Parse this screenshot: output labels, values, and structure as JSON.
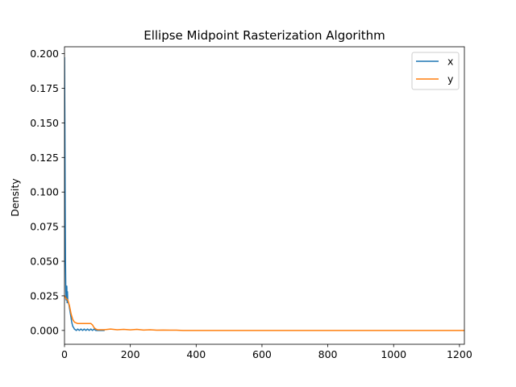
{
  "chart_data": {
    "type": "line",
    "title": "Ellipse Midpoint Rasterization Algorithm",
    "xlabel": "",
    "ylabel": "Density",
    "xlim": [
      0,
      1215
    ],
    "ylim": [
      -0.01,
      0.205
    ],
    "xticks": [
      0,
      200,
      400,
      600,
      800,
      1000,
      1200
    ],
    "yticks": [
      0.0,
      0.025,
      0.05,
      0.075,
      0.1,
      0.125,
      0.15,
      0.175,
      0.2
    ],
    "ytick_labels": [
      "0.000",
      "0.025",
      "0.050",
      "0.075",
      "0.100",
      "0.125",
      "0.150",
      "0.175",
      "0.200"
    ],
    "legend_position": "top-right",
    "grid": false,
    "series": [
      {
        "name": "x",
        "color": "#1f77b4",
        "x": [
          0,
          1,
          2,
          3,
          4,
          5,
          6,
          7,
          8,
          9,
          10,
          12,
          14,
          16,
          18,
          20,
          22,
          25,
          28,
          30,
          33,
          36,
          40,
          45,
          50,
          55,
          60,
          65,
          70,
          75,
          80,
          85,
          90,
          95,
          100,
          110,
          120
        ],
        "y": [
          0.197,
          0.15,
          0.09,
          0.05,
          0.03,
          0.022,
          0.025,
          0.032,
          0.02,
          0.028,
          0.021,
          0.02,
          0.018,
          0.015,
          0.012,
          0.009,
          0.006,
          0.003,
          0.002,
          0.001,
          0.0005,
          0.0,
          0.001,
          0.0,
          0.001,
          0.0,
          0.001,
          0.0,
          0.001,
          0.0,
          0.001,
          0.0,
          0.001,
          0.0,
          0.0,
          0.0,
          0.0
        ]
      },
      {
        "name": "y",
        "color": "#ff7f0e",
        "x": [
          0,
          5,
          10,
          15,
          20,
          25,
          30,
          40,
          50,
          60,
          70,
          80,
          85,
          90,
          95,
          100,
          120,
          140,
          160,
          180,
          200,
          220,
          240,
          260,
          280,
          300,
          320,
          340,
          360,
          400,
          500,
          600,
          800,
          1000,
          1215
        ],
        "y": [
          0.025,
          0.023,
          0.022,
          0.018,
          0.012,
          0.008,
          0.006,
          0.005,
          0.005,
          0.005,
          0.005,
          0.005,
          0.004,
          0.002,
          0.001,
          0.0005,
          0.0005,
          0.001,
          0.0005,
          0.0008,
          0.0004,
          0.0008,
          0.0003,
          0.0005,
          0.0002,
          0.0003,
          0.0002,
          0.0002,
          0.0,
          0.0,
          0.0,
          0.0,
          0.0,
          0.0,
          0.0
        ]
      }
    ]
  }
}
